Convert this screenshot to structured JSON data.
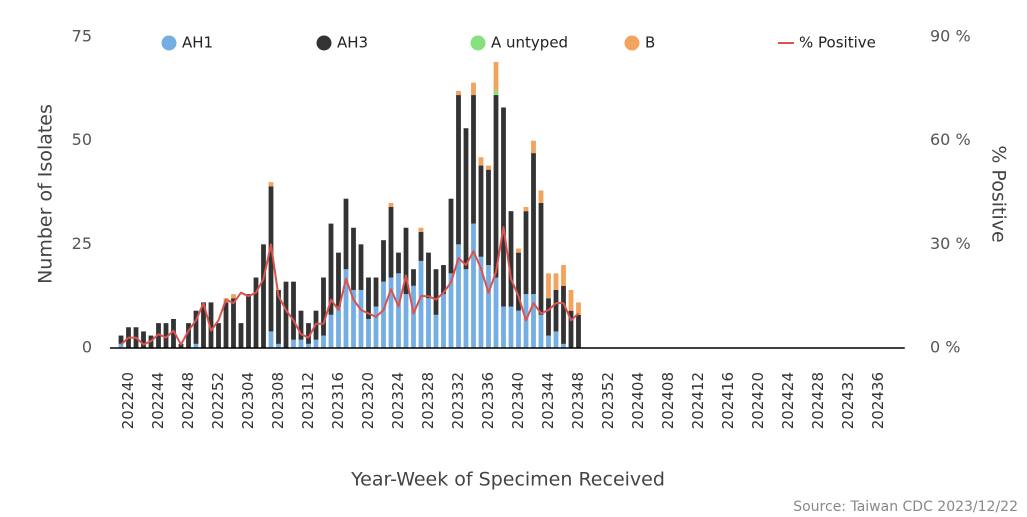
{
  "chart_data": {
    "type": "bar",
    "stacked": true,
    "x_label": "Year-Week of Specimen Received",
    "y_label": "Number of Isolates",
    "y2_label": "% Positive",
    "source": "Source: Taiwan CDC 2023/12/22",
    "ylim": [
      0,
      75
    ],
    "yticks": [
      0,
      25,
      50,
      75
    ],
    "y2lim": [
      0,
      90
    ],
    "y2ticks": [
      {
        "value": 0,
        "label": "0 %"
      },
      {
        "value": 30,
        "label": "30 %"
      },
      {
        "value": 60,
        "label": "60 %"
      },
      {
        "value": 90,
        "label": "90 %"
      }
    ],
    "categories": [
      null,
      "202240",
      null,
      null,
      null,
      "202244",
      null,
      null,
      null,
      "202248",
      null,
      null,
      null,
      "202252",
      null,
      null,
      null,
      "202304",
      null,
      null,
      null,
      "202308",
      null,
      null,
      null,
      "202312",
      null,
      null,
      null,
      "202316",
      null,
      null,
      null,
      "202320",
      null,
      null,
      null,
      "202324",
      null,
      null,
      null,
      "202328",
      null,
      null,
      null,
      "202332",
      null,
      null,
      null,
      "202336",
      null,
      null,
      null,
      "202340",
      null,
      null,
      null,
      "202344",
      null,
      null,
      null,
      "202348",
      null,
      null,
      null,
      "202352",
      null,
      null,
      null,
      "202404",
      null,
      null,
      null,
      "202408",
      null,
      null,
      null,
      "202412",
      null,
      null,
      null,
      "202416",
      null,
      null,
      null,
      "202420",
      null,
      null,
      null,
      "202424",
      null,
      null,
      null,
      "202428",
      null,
      null,
      null,
      "202432",
      null,
      null,
      null,
      "202436",
      null,
      null,
      null
    ],
    "series": [
      {
        "name": "AH1",
        "color": "#74aee2",
        "values": [
          1,
          0,
          0,
          0,
          0,
          0,
          0,
          0,
          0,
          0,
          1,
          0,
          0,
          0,
          0,
          0,
          0,
          0,
          0,
          0,
          4,
          1,
          0,
          2,
          2,
          1,
          2,
          3,
          8,
          10,
          19,
          14,
          14,
          7,
          10,
          16,
          17,
          18,
          13,
          15,
          21,
          12,
          8,
          13,
          18,
          25,
          19,
          30,
          22,
          20,
          17,
          10,
          10,
          9,
          13,
          13,
          8,
          3,
          4,
          1,
          0,
          0,
          null,
          null,
          null,
          null,
          null,
          null,
          null,
          null,
          null,
          null,
          null,
          null,
          null,
          null,
          null,
          null,
          null,
          null,
          null,
          null,
          null,
          null,
          null,
          null,
          null,
          null,
          null,
          null,
          null,
          null,
          null,
          null,
          null,
          null,
          null,
          null,
          null,
          null,
          null,
          null,
          null,
          null,
          null
        ]
      },
      {
        "name": "AH3",
        "color": "#333333",
        "values": [
          2,
          5,
          5,
          4,
          3,
          6,
          6,
          7,
          1,
          6,
          8,
          11,
          11,
          6,
          11,
          12,
          6,
          13,
          17,
          25,
          35,
          13,
          16,
          14,
          7,
          5,
          7,
          14,
          22,
          13,
          17,
          15,
          11,
          10,
          7,
          10,
          17,
          5,
          16,
          4,
          7,
          11,
          11,
          7,
          18,
          36,
          34,
          31,
          22,
          23,
          44,
          48,
          23,
          14,
          20,
          34,
          27,
          9,
          10,
          14,
          9,
          8,
          null,
          null,
          null,
          null,
          null,
          null,
          null,
          null,
          null,
          null,
          null,
          null,
          null,
          null,
          null,
          null,
          null,
          null,
          null,
          null,
          null,
          null,
          null,
          null,
          null,
          null,
          null,
          null,
          null,
          null,
          null,
          null,
          null,
          null,
          null,
          null,
          null,
          null,
          null,
          null,
          null,
          null,
          null
        ]
      },
      {
        "name": "A untyped",
        "color": "#86e07e",
        "values": [
          0,
          0,
          0,
          0,
          0,
          0,
          0,
          0,
          0,
          0,
          0,
          0,
          0,
          0,
          0,
          0,
          0,
          0,
          0,
          0,
          0,
          0,
          0,
          0,
          0,
          0,
          0,
          0,
          0,
          0,
          0,
          0,
          0,
          0,
          0,
          0,
          0,
          0,
          0,
          0,
          0,
          0,
          0,
          0,
          0,
          0,
          0,
          0,
          0,
          0,
          1,
          0,
          0,
          0,
          0,
          0,
          0,
          0,
          0,
          0,
          0,
          0,
          null,
          null,
          null,
          null,
          null,
          null,
          null,
          null,
          null,
          null,
          null,
          null,
          null,
          null,
          null,
          null,
          null,
          null,
          null,
          null,
          null,
          null,
          null,
          null,
          null,
          null,
          null,
          null,
          null,
          null,
          null,
          null,
          null,
          null,
          null,
          null,
          null,
          null,
          null,
          null,
          null,
          null,
          null
        ]
      },
      {
        "name": "B",
        "color": "#f2a35e",
        "values": [
          0,
          0,
          0,
          0,
          0,
          0,
          0,
          0,
          0,
          0,
          0,
          0,
          0,
          0,
          1,
          1,
          0,
          0,
          0,
          0,
          1,
          0,
          0,
          0,
          0,
          0,
          0,
          0,
          0,
          0,
          0,
          0,
          0,
          0,
          0,
          0,
          1,
          0,
          0,
          0,
          1,
          0,
          0,
          0,
          0,
          1,
          0,
          3,
          2,
          1,
          7,
          0,
          0,
          1,
          1,
          3,
          3,
          6,
          4,
          5,
          5,
          3,
          null,
          null,
          null,
          null,
          null,
          null,
          null,
          null,
          null,
          null,
          null,
          null,
          null,
          null,
          null,
          null,
          null,
          null,
          null,
          null,
          null,
          null,
          null,
          null,
          null,
          null,
          null,
          null,
          null,
          null,
          null,
          null,
          null,
          null,
          null,
          null,
          null,
          null,
          null,
          null,
          null,
          null,
          null
        ]
      },
      {
        "name": "% Positive",
        "type": "line",
        "axis": "y2",
        "color": "#d9534f",
        "values": [
          1,
          3,
          3,
          1,
          2,
          4,
          3,
          5,
          1,
          5,
          8,
          13,
          5,
          8,
          14,
          13,
          16,
          15,
          16,
          20,
          30,
          15,
          11,
          8,
          4,
          3,
          7,
          7,
          14,
          11,
          20,
          14,
          11,
          10,
          9,
          11,
          17,
          12,
          21,
          10,
          15,
          15,
          14,
          16,
          19,
          26,
          24,
          28,
          23,
          16,
          22,
          35,
          20,
          15,
          8,
          13,
          10,
          11,
          13,
          13,
          8,
          10,
          null,
          null,
          null,
          null,
          null,
          null,
          null,
          null,
          null,
          null,
          null,
          null,
          null,
          null,
          null,
          null,
          null,
          null,
          null,
          null,
          null,
          null,
          null,
          null,
          null,
          null,
          null,
          null,
          null,
          null,
          null,
          null,
          null,
          null,
          null,
          null,
          null,
          null,
          null,
          null,
          null,
          null,
          null
        ]
      }
    ]
  }
}
